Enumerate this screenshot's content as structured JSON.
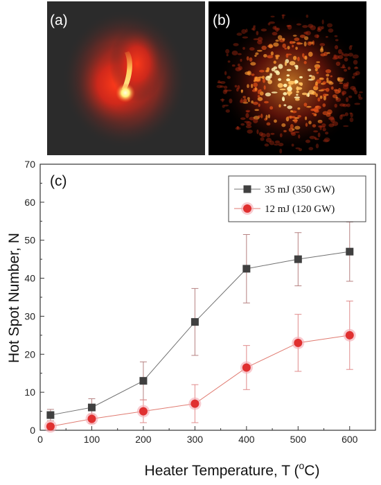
{
  "panels": {
    "a": {
      "label": "(a)"
    },
    "b": {
      "label": "(b)"
    }
  },
  "chart_data": {
    "type": "line",
    "panel_label": "(c)",
    "xlabel": "Heater Temperature, T (",
    "xlabel_sup": "o",
    "xlabel_tail": "C)",
    "ylabel": "Hot Spot Number, N",
    "xlim": [
      0,
      650
    ],
    "ylim": [
      0,
      70
    ],
    "xticks": [
      0,
      100,
      200,
      300,
      400,
      500,
      600
    ],
    "yticks": [
      0,
      10,
      20,
      30,
      40,
      50,
      60,
      70
    ],
    "legend_position": "top-right",
    "grid": false,
    "series": [
      {
        "name": "35 mJ (350 GW)",
        "marker": "square",
        "color": "#404040",
        "errcolor": "#b58080",
        "x": [
          20,
          100,
          200,
          300,
          400,
          500,
          600
        ],
        "y": [
          4,
          6,
          13,
          28.5,
          42.5,
          45,
          47
        ],
        "err": [
          1.5,
          2.3,
          5,
          8.8,
          9,
          7,
          7.8
        ]
      },
      {
        "name": "12 mJ (120 GW)",
        "marker": "circle",
        "color": "#e03030",
        "errcolor": "#e08a8a",
        "x": [
          20,
          100,
          200,
          300,
          400,
          500,
          600
        ],
        "y": [
          1,
          3,
          5,
          7,
          16.5,
          23,
          25
        ],
        "err": [
          0.8,
          1.2,
          3,
          5,
          5.8,
          7.5,
          9
        ]
      }
    ]
  }
}
